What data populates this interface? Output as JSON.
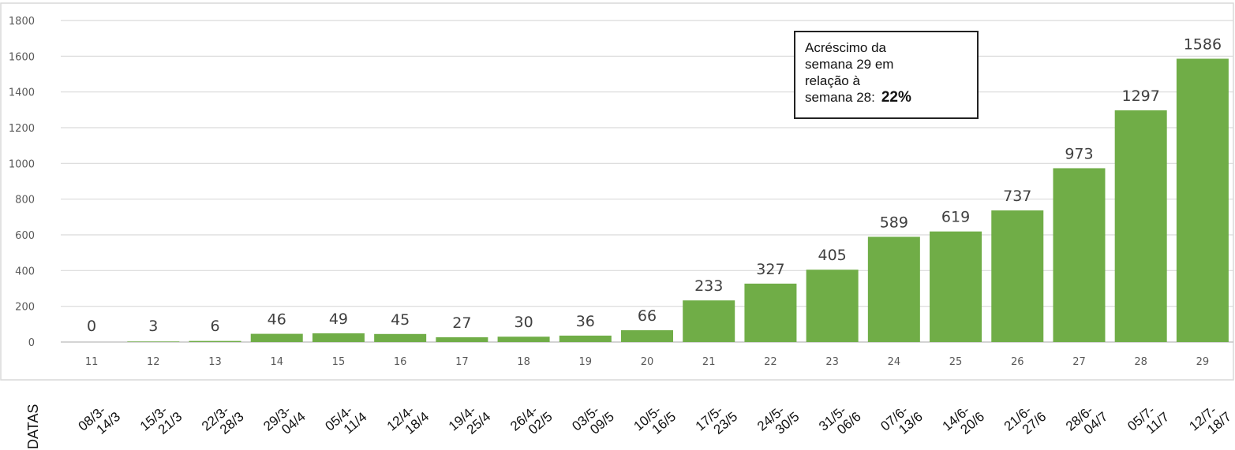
{
  "chart_data": {
    "type": "bar",
    "categories": [
      "11",
      "12",
      "13",
      "14",
      "15",
      "16",
      "17",
      "18",
      "19",
      "20",
      "21",
      "22",
      "23",
      "24",
      "25",
      "26",
      "27",
      "28",
      "29"
    ],
    "values": [
      0,
      3,
      6,
      46,
      49,
      45,
      27,
      30,
      36,
      66,
      233,
      327,
      405,
      589,
      619,
      737,
      973,
      1297,
      1586
    ],
    "data_labels": [
      "0",
      "3",
      "6",
      "46",
      "49",
      "45",
      "27",
      "30",
      "36",
      "66",
      "233",
      "327",
      "405",
      "589",
      "619",
      "737",
      "973",
      "1297",
      "1586"
    ],
    "date_label": "DATAS",
    "dates": [
      [
        "08/3-",
        "14/3"
      ],
      [
        "15/3-",
        "21/3"
      ],
      [
        "22/3-",
        "28/3"
      ],
      [
        "29/3-",
        "04/4"
      ],
      [
        "05/4-",
        "11/4"
      ],
      [
        "12/4-",
        "18/4"
      ],
      [
        "19/4-",
        "25/4"
      ],
      [
        "26/4-",
        "02/5"
      ],
      [
        "03/5-",
        "09/5"
      ],
      [
        "10/5-",
        "16/5"
      ],
      [
        "17/5-",
        "23/5"
      ],
      [
        "24/5-",
        "30/5"
      ],
      [
        "31/5-",
        "06/6"
      ],
      [
        "07/6-",
        "13/6"
      ],
      [
        "14/6-",
        "20/6"
      ],
      [
        "21/6-",
        "27/6"
      ],
      [
        "28/6-",
        "04/7"
      ],
      [
        "05/7-",
        "11/7"
      ],
      [
        "12/7-",
        "18/7"
      ]
    ],
    "ylim": [
      0,
      1800
    ],
    "yticks": [
      0,
      200,
      400,
      600,
      800,
      1000,
      1200,
      1400,
      1600,
      1800
    ],
    "grid": true,
    "bar_color": "#70ad47",
    "annotation": {
      "line1": "Acréscimo da",
      "line2": "semana 29 em",
      "line3": "relação à",
      "line4": "semana 28:",
      "value": "22%"
    }
  }
}
